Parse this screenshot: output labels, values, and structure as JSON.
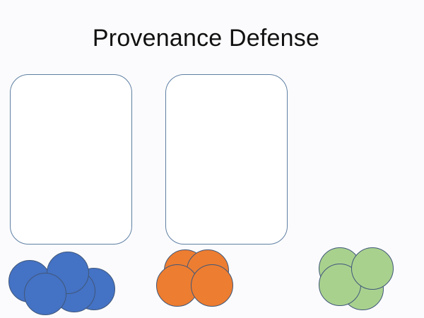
{
  "slide": {
    "title": "Provenance Defense"
  },
  "piles": {
    "blue": {
      "color": "#4472c4",
      "count": 5
    },
    "orange": {
      "color": "#ed7d31",
      "count": 4
    },
    "green": {
      "color": "#a9d18e",
      "count": 4
    }
  }
}
